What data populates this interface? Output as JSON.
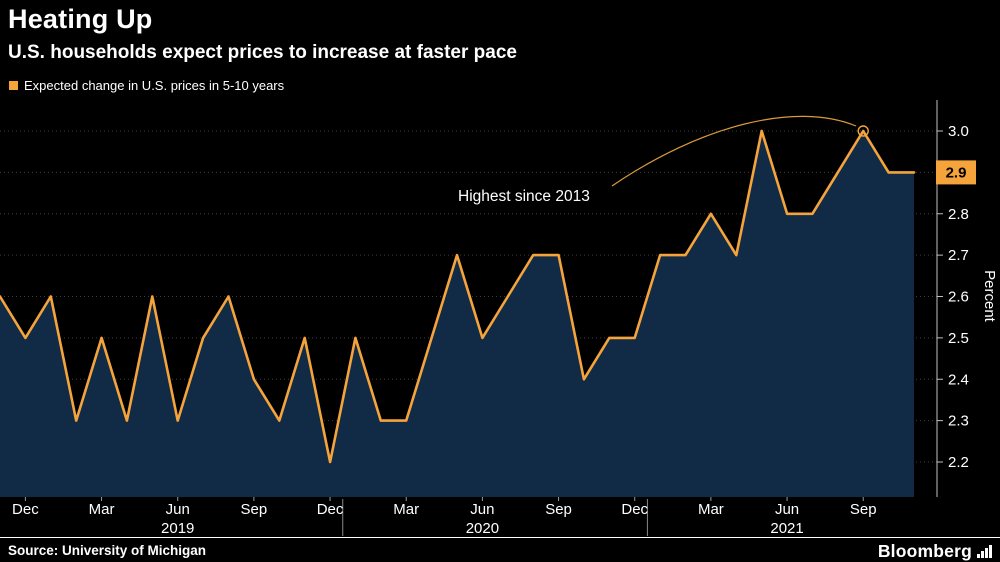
{
  "header": {
    "title": "Heating Up",
    "subtitle": "U.S. households expect prices to increase at faster pace"
  },
  "legend": {
    "label": "Expected change in U.S. prices in 5-10 years",
    "color": "#F5A43B"
  },
  "annotation": {
    "text": "Highest since 2013"
  },
  "badge": {
    "value": "2.9"
  },
  "y_axis_title": "Percent",
  "footer": {
    "source": "Source: University of Michigan",
    "brand": "Bloomberg"
  },
  "chart_data": {
    "type": "area",
    "title": "Heating Up",
    "subtitle": "U.S. households expect prices to increase at faster pace",
    "x": [
      "Nov 2018",
      "Dec 2018",
      "Jan 2019",
      "Feb 2019",
      "Mar 2019",
      "Apr 2019",
      "May 2019",
      "Jun 2019",
      "Jul 2019",
      "Aug 2019",
      "Sep 2019",
      "Oct 2019",
      "Nov 2019",
      "Dec 2019",
      "Jan 2020",
      "Feb 2020",
      "Mar 2020",
      "Apr 2020",
      "May 2020",
      "Jun 2020",
      "Jul 2020",
      "Aug 2020",
      "Sep 2020",
      "Oct 2020",
      "Nov 2020",
      "Dec 2020",
      "Jan 2021",
      "Feb 2021",
      "Mar 2021",
      "Apr 2021",
      "May 2021",
      "Jun 2021",
      "Jul 2021",
      "Aug 2021",
      "Sep 2021",
      "Oct 2021",
      "Nov 2021"
    ],
    "series": [
      {
        "name": "Expected change in U.S. prices in 5-10 years",
        "values": [
          2.6,
          2.5,
          2.6,
          2.3,
          2.5,
          2.3,
          2.6,
          2.3,
          2.5,
          2.6,
          2.4,
          2.3,
          2.5,
          2.2,
          2.5,
          2.3,
          2.3,
          2.5,
          2.7,
          2.5,
          2.6,
          2.7,
          2.7,
          2.4,
          2.5,
          2.5,
          2.7,
          2.7,
          2.8,
          2.7,
          3.0,
          2.8,
          2.8,
          2.9,
          3.0,
          2.9,
          2.9
        ]
      }
    ],
    "ylabel": "Percent",
    "ylim": [
      2.15,
      3.05
    ],
    "yticks": [
      2.2,
      2.3,
      2.4,
      2.5,
      2.6,
      2.7,
      2.8,
      2.9,
      3.0
    ],
    "x_tick_labels": [
      {
        "label": "Dec",
        "index": 1
      },
      {
        "label": "Mar",
        "index": 4
      },
      {
        "label": "Jun",
        "index": 7
      },
      {
        "label": "Sep",
        "index": 10
      },
      {
        "label": "Dec",
        "index": 13
      },
      {
        "label": "Mar",
        "index": 16
      },
      {
        "label": "Jun",
        "index": 19
      },
      {
        "label": "Sep",
        "index": 22
      },
      {
        "label": "Dec",
        "index": 25
      },
      {
        "label": "Mar",
        "index": 28
      },
      {
        "label": "Jun",
        "index": 31
      },
      {
        "label": "Sep",
        "index": 34
      }
    ],
    "year_labels": [
      {
        "label": "2019",
        "index": 7
      },
      {
        "label": "2020",
        "index": 19
      },
      {
        "label": "2021",
        "index": 31
      }
    ],
    "year_separator_indices": [
      13.5,
      25.5
    ],
    "grid": "horizontal-dotted",
    "legend_position": "top-left",
    "line_color": "#F5A43B",
    "fill_color": "#112A45",
    "background": "#000000",
    "annotation": {
      "text": "Highest since 2013",
      "target_month": "Sep 2021",
      "target_value": 3.0
    },
    "last_value_label": "2.9"
  }
}
